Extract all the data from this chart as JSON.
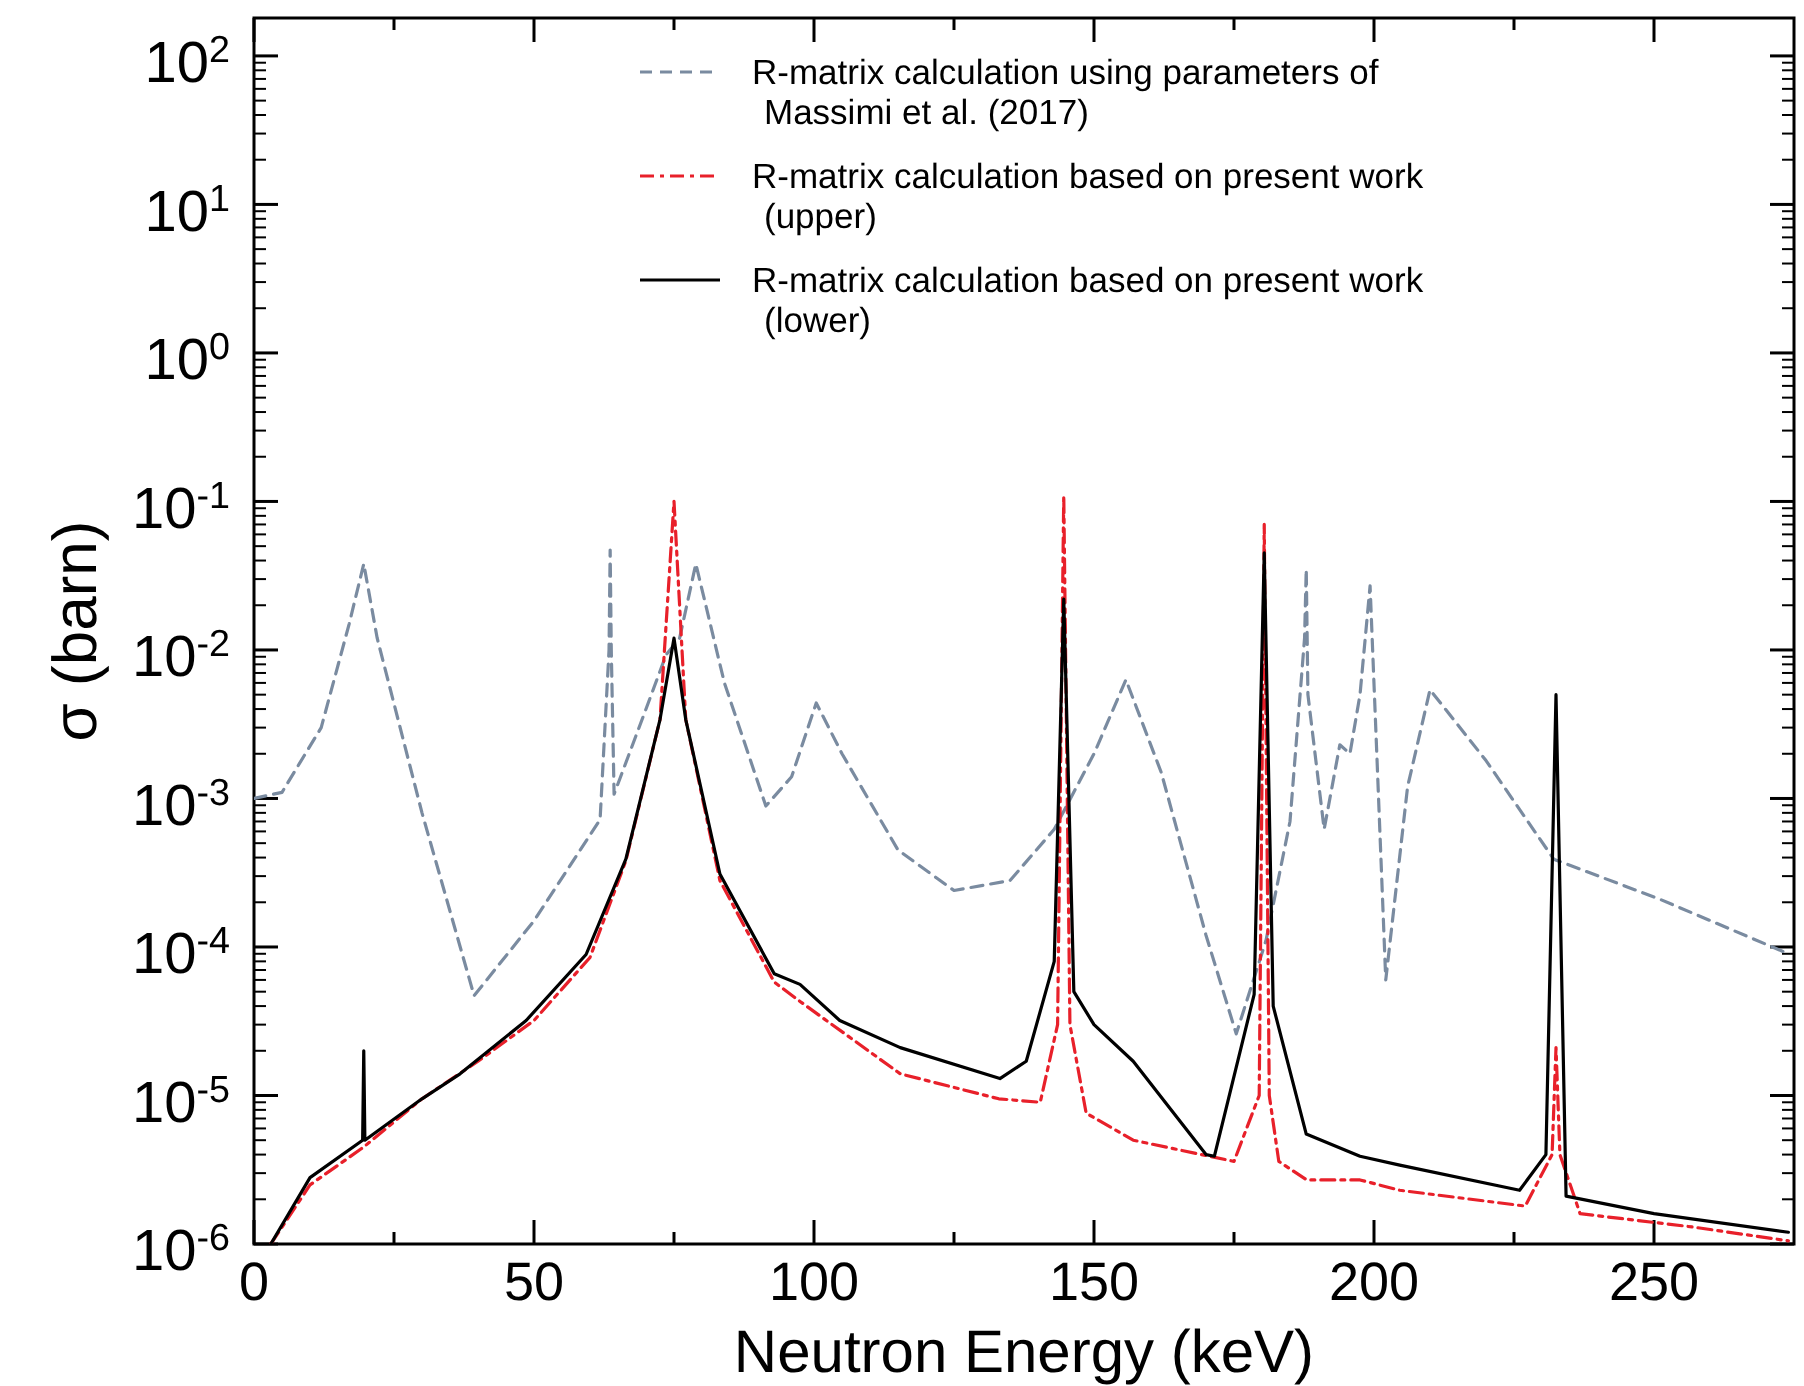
{
  "chart_data": {
    "type": "line",
    "xlabel": "Neutron Energy (keV)",
    "ylabel": "σ (barn)",
    "log": "y",
    "legend": "top right",
    "xlim": [
      0,
      275
    ],
    "ylim": [
      1e-06,
      180
    ],
    "xticks": [
      0,
      {
        "value": 25,
        "label": null
      },
      50,
      {
        "value": 75,
        "label": null
      },
      100,
      {
        "value": 125,
        "label": null
      },
      150,
      {
        "value": 175,
        "label": null
      },
      200,
      {
        "value": 225,
        "label": null
      },
      250
    ],
    "yticks": [
      {
        "value": 1e-06,
        "label": "10$^{-6}$"
      },
      {
        "value": 1e-05,
        "label": "10$^{-5}$"
      },
      {
        "value": 0.0001,
        "label": "10$^{-4}$"
      },
      {
        "value": 0.001,
        "label": "10$^{-3}$"
      },
      {
        "value": 0.01,
        "label": "10$^{-2}$"
      },
      {
        "value": 0.1,
        "label": "10$^{-1}$"
      },
      {
        "value": 1,
        "label": "10$^{0}$"
      },
      {
        "value": 10,
        "label": "10$^{1}$"
      },
      {
        "value": 100,
        "label": "10$^{2}$"
      }
    ],
    "series": [
      {
        "name": "R-matrix calculation using parameters of Massimi et al. (2017)",
        "color": "#7a8ba0",
        "line_style": "dashed",
        "x": [
          0,
          5,
          12,
          17,
          19.6,
          22,
          30,
          39.3,
          50,
          61.8,
          63.4,
          63.6,
          63.8,
          64.3,
          70,
          73.6,
          76,
          78.9,
          84,
          91.4,
          96,
          100.4,
          105,
          115,
          125,
          135,
          142.9,
          150,
          155.7,
          162,
          170,
          175.4,
          180.7,
          185,
          187.6,
          187.9,
          188.2,
          191.1,
          193.9,
          195.7,
          197.5,
          199.3,
          200.5,
          202.1,
          206,
          210,
          220,
          232.1,
          251,
          274
        ],
        "values": [
          0.001,
          0.0011,
          0.003,
          0.015,
          0.038,
          0.012,
          0.0008,
          4.7e-05,
          0.00015,
          0.00072,
          0.01,
          0.047,
          0.01,
          0.00107,
          0.004,
          0.0093,
          0.012,
          0.038,
          0.006,
          0.00089,
          0.0014,
          0.0044,
          0.002,
          0.00045,
          0.00024,
          0.00028,
          0.00062,
          0.002,
          0.0063,
          0.0015,
          0.00012,
          2.6e-05,
          0.00011,
          0.0007,
          0.012,
          0.035,
          0.005,
          0.00062,
          0.0023,
          0.002,
          0.005,
          0.027,
          0.002,
          6e-05,
          0.0012,
          0.0054,
          0.0018,
          0.00039,
          0.00021,
          9e-05
        ]
      },
      {
        "name": "R-matrix calculation based on present work (upper)",
        "color": "#e8202a",
        "line_style": "dashdot",
        "x": [
          3,
          10,
          19.6,
          30,
          40,
          50,
          60,
          66.4,
          72.5,
          75,
          77.1,
          83.2,
          92.9,
          97.5,
          115.4,
          133,
          140.4,
          143.5,
          144.6,
          145.7,
          148.6,
          157,
          175,
          179.5,
          180.4,
          181.3,
          183,
          188,
          197.5,
          204.6,
          227,
          231.8,
          232.5,
          233.2,
          236.8,
          257,
          274
        ],
        "values": [
          1e-06,
          2.5e-06,
          4.5e-06,
          9.5e-06,
          1.7e-05,
          3.2e-05,
          8.5e-05,
          0.00038,
          0.0034,
          0.1,
          0.0034,
          0.00028,
          5.8e-05,
          4.3e-05,
          1.4e-05,
          9.5e-06,
          9e-06,
          3e-05,
          0.11,
          3e-05,
          7.6e-06,
          5e-06,
          3.6e-06,
          1e-05,
          0.07,
          1e-05,
          3.6e-06,
          2.7e-06,
          2.7e-06,
          2.3e-06,
          1.8e-06,
          4e-06,
          2.1e-05,
          4e-06,
          1.6e-06,
          1.3e-06,
          1.05e-06
        ]
      },
      {
        "name": "R-matrix calculation based on present work (lower)",
        "color": "#000000",
        "line_style": "solid",
        "x": [
          3,
          10,
          19.4,
          19.6,
          19.8,
          30,
          36.8,
          48.6,
          59.3,
          66.4,
          72.5,
          75,
          77.1,
          83.2,
          92.9,
          97.5,
          104.6,
          115.4,
          133.2,
          137.9,
          142.9,
          144.6,
          146.4,
          150,
          157,
          170,
          171.5,
          178.6,
          180.4,
          182,
          187.9,
          197.5,
          204.6,
          226,
          230.7,
          232.5,
          234.3,
          250,
          274
        ],
        "values": [
          1e-06,
          2.8e-06,
          5e-06,
          2e-05,
          5e-06,
          9.5e-06,
          1.4e-05,
          3.2e-05,
          8.9e-05,
          0.00039,
          0.0034,
          0.012,
          0.0034,
          0.00031,
          6.6e-05,
          5.6e-05,
          3.2e-05,
          2.1e-05,
          1.3e-05,
          1.7e-05,
          8e-05,
          0.022,
          5e-05,
          3e-05,
          1.7e-05,
          4e-06,
          3.9e-06,
          4.8e-05,
          0.045,
          4e-05,
          5.5e-06,
          3.9e-06,
          3.4e-06,
          2.3e-06,
          4e-06,
          0.005,
          2.1e-06,
          1.6e-06,
          1.2e-06
        ]
      }
    ]
  }
}
